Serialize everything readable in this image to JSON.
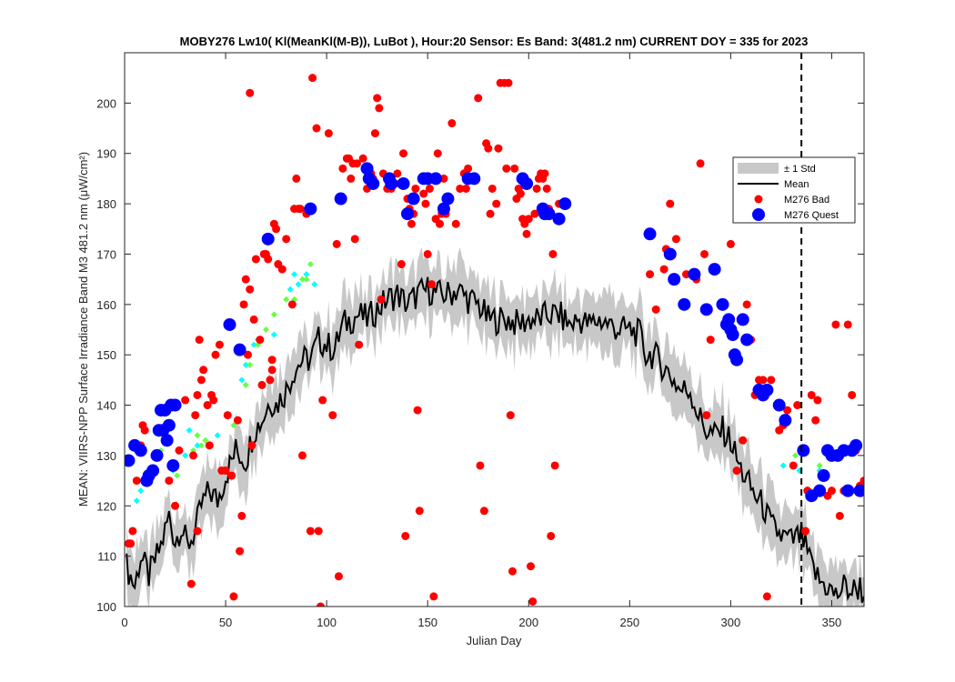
{
  "chart_data": {
    "type": "scatter",
    "title": "MOBY276   Lw10( Kl(MeanKl(M-B)), LuBot ),    Hour:20 Sensor: Es Band: 3(481.2 nm)   CURRENT DOY = 335 for 2023",
    "xlabel": "Julian Day",
    "ylabel": "MEAN: VIIRS-NPP Surface Irradiance Band M3 481.2 nm (μW/cm²)",
    "xlim": [
      0,
      366
    ],
    "ylim": [
      100,
      210
    ],
    "xticks": [
      0,
      50,
      100,
      150,
      200,
      250,
      300,
      350
    ],
    "yticks": [
      100,
      110,
      120,
      130,
      140,
      150,
      160,
      170,
      180,
      190,
      200
    ],
    "current_doy": 335,
    "colors": {
      "std_band": "#c8c8c8",
      "mean_line": "#000000",
      "bad": "#ff0000",
      "quest": "#0000ff",
      "cyan": "#00ffff",
      "green": "#66ff44"
    },
    "legend": {
      "position": "right",
      "entries": [
        {
          "label": "± 1 Std",
          "key": "std"
        },
        {
          "label": "Mean",
          "key": "mean"
        },
        {
          "label": "M276 Bad",
          "key": "bad"
        },
        {
          "label": "M276 Quest",
          "key": "quest"
        }
      ]
    },
    "mean_anchors": [
      [
        1,
        108
      ],
      [
        5,
        104
      ],
      [
        8,
        110
      ],
      [
        12,
        106
      ],
      [
        18,
        112
      ],
      [
        22,
        118
      ],
      [
        25,
        113
      ],
      [
        28,
        116
      ],
      [
        31,
        112
      ],
      [
        35,
        115
      ],
      [
        38,
        120
      ],
      [
        42,
        123
      ],
      [
        46,
        121
      ],
      [
        50,
        126
      ],
      [
        55,
        131
      ],
      [
        60,
        129
      ],
      [
        64,
        135
      ],
      [
        68,
        137
      ],
      [
        72,
        141
      ],
      [
        75,
        140
      ],
      [
        80,
        143
      ],
      [
        84,
        147
      ],
      [
        88,
        149
      ],
      [
        92,
        149
      ],
      [
        96,
        153
      ],
      [
        100,
        152
      ],
      [
        104,
        151
      ],
      [
        108,
        156
      ],
      [
        112,
        157
      ],
      [
        116,
        158
      ],
      [
        120,
        157
      ],
      [
        125,
        159
      ],
      [
        130,
        161
      ],
      [
        135,
        162
      ],
      [
        140,
        160
      ],
      [
        145,
        162
      ],
      [
        150,
        163
      ],
      [
        155,
        162
      ],
      [
        160,
        162
      ],
      [
        165,
        163
      ],
      [
        170,
        161
      ],
      [
        175,
        160
      ],
      [
        180,
        157
      ],
      [
        185,
        157
      ],
      [
        190,
        157
      ],
      [
        195,
        156
      ],
      [
        200,
        157
      ],
      [
        205,
        157
      ],
      [
        210,
        158
      ],
      [
        215,
        158
      ],
      [
        220,
        156
      ],
      [
        225,
        157
      ],
      [
        230,
        156
      ],
      [
        235,
        157
      ],
      [
        240,
        156
      ],
      [
        245,
        155
      ],
      [
        250,
        155
      ],
      [
        255,
        154
      ],
      [
        258,
        150
      ],
      [
        262,
        150
      ],
      [
        266,
        148
      ],
      [
        270,
        146
      ],
      [
        275,
        143
      ],
      [
        280,
        143
      ],
      [
        284,
        138
      ],
      [
        288,
        135
      ],
      [
        292,
        134
      ],
      [
        296,
        135
      ],
      [
        300,
        133
      ],
      [
        304,
        128
      ],
      [
        308,
        125
      ],
      [
        312,
        122
      ],
      [
        316,
        120
      ],
      [
        320,
        116
      ],
      [
        325,
        114
      ],
      [
        330,
        113
      ],
      [
        335,
        114
      ],
      [
        340,
        108
      ],
      [
        344,
        105
      ],
      [
        348,
        104
      ],
      [
        352,
        102
      ],
      [
        356,
        104
      ],
      [
        360,
        103
      ],
      [
        364,
        104
      ],
      [
        366,
        102
      ]
    ],
    "std_halfwidth": 5,
    "bad_points": [
      [
        2,
        112.5
      ],
      [
        3,
        112.5
      ],
      [
        4,
        115
      ],
      [
        6,
        125
      ],
      [
        8,
        132
      ],
      [
        9,
        136
      ],
      [
        10,
        135
      ],
      [
        12,
        126
      ],
      [
        22,
        125
      ],
      [
        25,
        120
      ],
      [
        27,
        131
      ],
      [
        30,
        141
      ],
      [
        33,
        104.5
      ],
      [
        34,
        130
      ],
      [
        35,
        138
      ],
      [
        36,
        115
      ],
      [
        36,
        142
      ],
      [
        37,
        153
      ],
      [
        38,
        145
      ],
      [
        39,
        147
      ],
      [
        41,
        140
      ],
      [
        42,
        132
      ],
      [
        43,
        142
      ],
      [
        44,
        141
      ],
      [
        45,
        150
      ],
      [
        47,
        152
      ],
      [
        48,
        127
      ],
      [
        50,
        127
      ],
      [
        51,
        138
      ],
      [
        53,
        126
      ],
      [
        54,
        102
      ],
      [
        56,
        137
      ],
      [
        57,
        111
      ],
      [
        58,
        118
      ],
      [
        59,
        160
      ],
      [
        60,
        165
      ],
      [
        61,
        150
      ],
      [
        62,
        202
      ],
      [
        62,
        163
      ],
      [
        63,
        132
      ],
      [
        64,
        157
      ],
      [
        65,
        169
      ],
      [
        67,
        153
      ],
      [
        68,
        144
      ],
      [
        69,
        170
      ],
      [
        70,
        170
      ],
      [
        71,
        169
      ],
      [
        72,
        145
      ],
      [
        73,
        149
      ],
      [
        73,
        147
      ],
      [
        74,
        176
      ],
      [
        75,
        175
      ],
      [
        76,
        168
      ],
      [
        78,
        167
      ],
      [
        80,
        173
      ],
      [
        83,
        160
      ],
      [
        84,
        179
      ],
      [
        85,
        185
      ],
      [
        86,
        179
      ],
      [
        87,
        179
      ],
      [
        88,
        130
      ],
      [
        90,
        178
      ],
      [
        92,
        115
      ],
      [
        93,
        205
      ],
      [
        95,
        195
      ],
      [
        96,
        115
      ],
      [
        97,
        100
      ],
      [
        98,
        141
      ],
      [
        101,
        194
      ],
      [
        103,
        138
      ],
      [
        105,
        172
      ],
      [
        106,
        106
      ],
      [
        108,
        187
      ],
      [
        110,
        189
      ],
      [
        111,
        189
      ],
      [
        112,
        185
      ],
      [
        113,
        188
      ],
      [
        114,
        173
      ],
      [
        115,
        188
      ],
      [
        116,
        152
      ],
      [
        118,
        189
      ],
      [
        120,
        183
      ],
      [
        121,
        187
      ],
      [
        122,
        186
      ],
      [
        123,
        185
      ],
      [
        124,
        194
      ],
      [
        125,
        201
      ],
      [
        126,
        199
      ],
      [
        127,
        161
      ],
      [
        128,
        186
      ],
      [
        130,
        183
      ],
      [
        132,
        183
      ],
      [
        134,
        184
      ],
      [
        135,
        186
      ],
      [
        137,
        168
      ],
      [
        138,
        190
      ],
      [
        139,
        114
      ],
      [
        140,
        181
      ],
      [
        141,
        179
      ],
      [
        142,
        176
      ],
      [
        143,
        178
      ],
      [
        144,
        183
      ],
      [
        145,
        139
      ],
      [
        146,
        119
      ],
      [
        148,
        182
      ],
      [
        149,
        180
      ],
      [
        150,
        170
      ],
      [
        151,
        183
      ],
      [
        152,
        164
      ],
      [
        153,
        102
      ],
      [
        154,
        177
      ],
      [
        155,
        190
      ],
      [
        156,
        176
      ],
      [
        157,
        178
      ],
      [
        158,
        185
      ],
      [
        159,
        178
      ],
      [
        160,
        181
      ],
      [
        162,
        196
      ],
      [
        164,
        176
      ],
      [
        166,
        183
      ],
      [
        168,
        186
      ],
      [
        169,
        183
      ],
      [
        170,
        187
      ],
      [
        172,
        185
      ],
      [
        175,
        201
      ],
      [
        176,
        128
      ],
      [
        178,
        119
      ],
      [
        179,
        192
      ],
      [
        180,
        191
      ],
      [
        181,
        178
      ],
      [
        182,
        183
      ],
      [
        184,
        180
      ],
      [
        185,
        191
      ],
      [
        186,
        204
      ],
      [
        188,
        204
      ],
      [
        189,
        187
      ],
      [
        190,
        204
      ],
      [
        191,
        138
      ],
      [
        192,
        107
      ],
      [
        193,
        187
      ],
      [
        194,
        181
      ],
      [
        195,
        183
      ],
      [
        196,
        182
      ],
      [
        197,
        177
      ],
      [
        198,
        176
      ],
      [
        199,
        174
      ],
      [
        200,
        177
      ],
      [
        201,
        108
      ],
      [
        202,
        101
      ],
      [
        203,
        178
      ],
      [
        204,
        183
      ],
      [
        205,
        185
      ],
      [
        206,
        186
      ],
      [
        207,
        185
      ],
      [
        208,
        186
      ],
      [
        209,
        183
      ],
      [
        210,
        179
      ],
      [
        211,
        114
      ],
      [
        212,
        170
      ],
      [
        213,
        128
      ],
      [
        215,
        180
      ],
      [
        260,
        166
      ],
      [
        263,
        159
      ],
      [
        267,
        167
      ],
      [
        268,
        171
      ],
      [
        270,
        180
      ],
      [
        273,
        173
      ],
      [
        278,
        166
      ],
      [
        283,
        165
      ],
      [
        285,
        188
      ],
      [
        287,
        170
      ],
      [
        288,
        138
      ],
      [
        290,
        153
      ],
      [
        300,
        172
      ],
      [
        303,
        127
      ],
      [
        306,
        133
      ],
      [
        308,
        160
      ],
      [
        310,
        153
      ],
      [
        312,
        142
      ],
      [
        314,
        145
      ],
      [
        316,
        145
      ],
      [
        318,
        102
      ],
      [
        320,
        145
      ],
      [
        324,
        135
      ],
      [
        326,
        136
      ],
      [
        328,
        139
      ],
      [
        331,
        128
      ],
      [
        333,
        140
      ],
      [
        337,
        115
      ],
      [
        338,
        123
      ],
      [
        340,
        142
      ],
      [
        342,
        137
      ],
      [
        343,
        141
      ],
      [
        345,
        123
      ],
      [
        348,
        122
      ],
      [
        350,
        123
      ],
      [
        352,
        156
      ],
      [
        354,
        118
      ],
      [
        356,
        123
      ],
      [
        358,
        156
      ],
      [
        360,
        142
      ],
      [
        362,
        131
      ],
      [
        364,
        124
      ],
      [
        366,
        125
      ]
    ],
    "quest_points": [
      [
        2,
        129
      ],
      [
        5,
        132
      ],
      [
        8,
        131
      ],
      [
        11,
        125
      ],
      [
        12,
        126
      ],
      [
        14,
        127
      ],
      [
        16,
        130
      ],
      [
        17,
        135
      ],
      [
        18,
        139
      ],
      [
        19,
        135
      ],
      [
        20,
        139
      ],
      [
        21,
        133
      ],
      [
        22,
        136
      ],
      [
        23,
        140
      ],
      [
        24,
        128
      ],
      [
        25,
        140
      ],
      [
        52,
        156
      ],
      [
        57,
        151
      ],
      [
        71,
        173
      ],
      [
        92,
        179
      ],
      [
        107,
        181
      ],
      [
        120,
        187
      ],
      [
        121,
        185
      ],
      [
        123,
        184
      ],
      [
        131,
        185
      ],
      [
        132,
        184
      ],
      [
        138,
        184
      ],
      [
        140,
        178
      ],
      [
        143,
        181
      ],
      [
        148,
        185
      ],
      [
        150,
        185
      ],
      [
        154,
        185
      ],
      [
        158,
        179
      ],
      [
        160,
        181
      ],
      [
        170,
        185
      ],
      [
        173,
        185
      ],
      [
        197,
        185
      ],
      [
        199,
        184
      ],
      [
        207,
        179
      ],
      [
        208,
        178
      ],
      [
        210,
        178
      ],
      [
        215,
        177
      ],
      [
        218,
        180
      ],
      [
        260,
        174
      ],
      [
        270,
        170
      ],
      [
        272,
        165
      ],
      [
        277,
        160
      ],
      [
        282,
        166
      ],
      [
        288,
        159
      ],
      [
        292,
        167
      ],
      [
        296,
        160
      ],
      [
        298,
        156
      ],
      [
        299,
        157
      ],
      [
        300,
        155
      ],
      [
        301,
        154
      ],
      [
        302,
        150
      ],
      [
        303,
        149
      ],
      [
        306,
        157
      ],
      [
        308,
        153
      ],
      [
        314,
        143
      ],
      [
        316,
        142
      ],
      [
        318,
        143
      ],
      [
        324,
        140
      ],
      [
        327,
        137
      ],
      [
        336,
        131
      ],
      [
        340,
        122
      ],
      [
        344,
        123
      ],
      [
        346,
        126
      ],
      [
        348,
        131
      ],
      [
        350,
        130
      ],
      [
        353,
        130
      ],
      [
        356,
        131
      ],
      [
        358,
        123
      ],
      [
        360,
        131
      ],
      [
        362,
        132
      ],
      [
        364,
        123
      ]
    ],
    "cyan_points": [
      [
        6,
        121
      ],
      [
        8,
        123
      ],
      [
        24,
        127
      ],
      [
        30,
        130
      ],
      [
        32,
        135
      ],
      [
        36,
        132
      ],
      [
        46,
        134
      ],
      [
        58,
        145
      ],
      [
        60,
        148
      ],
      [
        64,
        152
      ],
      [
        66,
        153
      ],
      [
        74,
        154
      ],
      [
        82,
        163
      ],
      [
        84,
        166
      ],
      [
        86,
        164
      ],
      [
        90,
        166
      ],
      [
        94,
        164
      ],
      [
        326,
        128
      ],
      [
        334,
        127
      ],
      [
        344,
        127
      ]
    ],
    "green_points": [
      [
        18,
        131
      ],
      [
        26,
        126
      ],
      [
        34,
        131
      ],
      [
        36,
        134
      ],
      [
        38,
        132
      ],
      [
        40,
        133
      ],
      [
        54,
        136
      ],
      [
        60,
        144
      ],
      [
        62,
        148
      ],
      [
        66,
        152
      ],
      [
        70,
        155
      ],
      [
        74,
        158
      ],
      [
        80,
        161
      ],
      [
        84,
        161
      ],
      [
        88,
        165
      ],
      [
        90,
        165
      ],
      [
        92,
        168
      ],
      [
        332,
        130
      ],
      [
        344,
        128
      ]
    ]
  }
}
